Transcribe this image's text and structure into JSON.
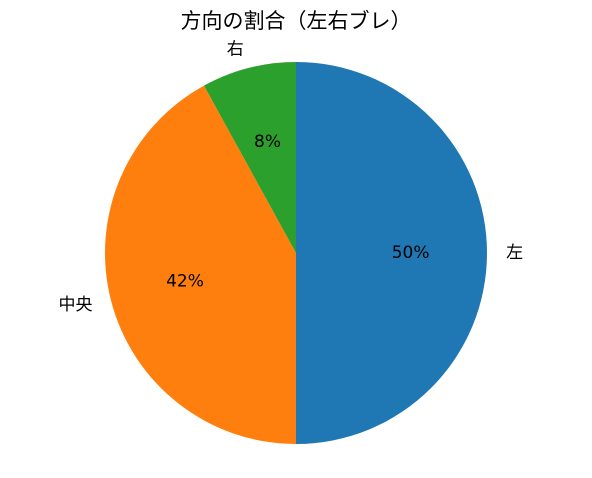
{
  "chart_data": {
    "type": "pie",
    "title": "方向の割合（左右ブレ）",
    "categories": [
      "左",
      "中央",
      "右"
    ],
    "values": [
      50,
      42,
      8
    ],
    "value_labels": [
      "50%",
      "42%",
      "8%"
    ],
    "colors": [
      "#1f77b4",
      "#ff7f0e",
      "#2ca02c"
    ]
  }
}
